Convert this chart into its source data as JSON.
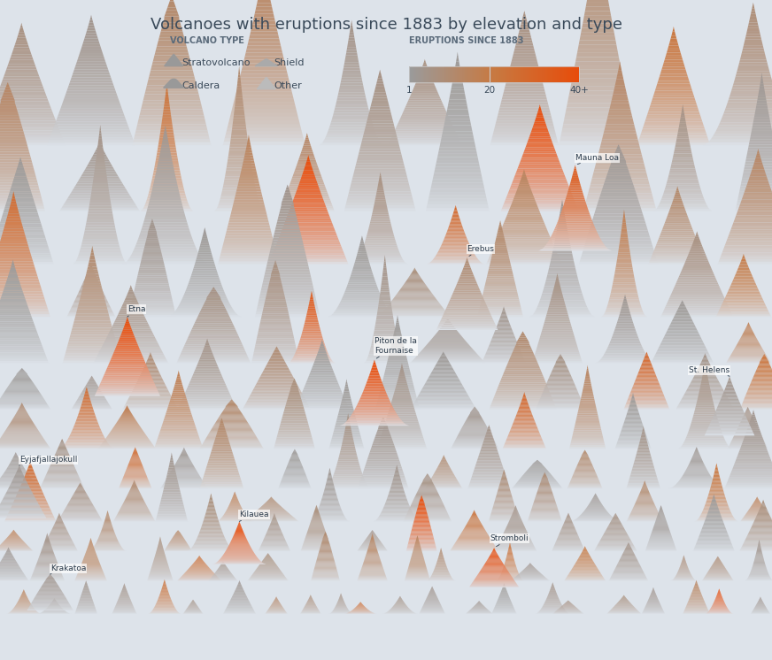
{
  "title": "Volcanoes with eruptions since 1883 by elevation and type",
  "background_color": "#dde3ea",
  "title_color": "#3a4a5a",
  "legend_type_label": "VOLCANO TYPE",
  "legend_eruption_label": "ERUPTIONS SINCE 1883",
  "legend_items": [
    "Stratovolcano",
    "Shield",
    "Caldera",
    "Other"
  ],
  "colorbar_ticks": [
    "1",
    "20",
    "40+"
  ],
  "color_low": "#9b9b9b",
  "color_mid": "#c87941",
  "color_high": "#e84c0a",
  "row_params": [
    [
      0.78,
      0.22,
      0.1,
      10,
      1
    ],
    [
      0.68,
      0.18,
      0.09,
      11,
      2
    ],
    [
      0.6,
      0.15,
      0.085,
      11,
      3
    ],
    [
      0.52,
      0.14,
      0.08,
      12,
      4
    ],
    [
      0.45,
      0.12,
      0.075,
      13,
      5
    ],
    [
      0.38,
      0.1,
      0.07,
      13,
      6
    ],
    [
      0.32,
      0.09,
      0.065,
      14,
      7
    ],
    [
      0.26,
      0.08,
      0.06,
      15,
      8
    ],
    [
      0.21,
      0.07,
      0.055,
      15,
      9
    ],
    [
      0.165,
      0.06,
      0.05,
      16,
      10
    ],
    [
      0.12,
      0.05,
      0.045,
      18,
      11
    ],
    [
      0.07,
      0.035,
      0.035,
      22,
      12
    ]
  ],
  "label_volc_params": {
    "Mauna Loa": [
      0.745,
      0.62,
      0.095,
      0.13,
      33,
      "shield",
      15
    ],
    "Erebus": [
      0.605,
      0.5,
      0.08,
      0.11,
      9,
      "strato",
      14
    ],
    "Etna": [
      0.165,
      0.4,
      0.085,
      0.12,
      40,
      "strato",
      14
    ],
    "Piton de la\nFournaise": [
      0.485,
      0.355,
      0.09,
      0.1,
      40,
      "shield",
      14
    ],
    "St. Helens": [
      0.945,
      0.34,
      0.065,
      0.09,
      3,
      "strato",
      13
    ],
    "Eyjafjallajokull": [
      0.025,
      0.215,
      0.07,
      0.08,
      2,
      "strato",
      12
    ],
    "Kilauea": [
      0.31,
      0.145,
      0.07,
      0.065,
      40,
      "shield",
      12
    ],
    "Stromboli": [
      0.64,
      0.11,
      0.065,
      0.06,
      40,
      "strato",
      12
    ],
    "Krakatoa": [
      0.065,
      0.075,
      0.06,
      0.055,
      3,
      "caldera",
      12
    ]
  },
  "label_positions": {
    "Mauna Loa": [
      0.745,
      0.755,
      "left"
    ],
    "Erebus": [
      0.605,
      0.617,
      "left"
    ],
    "Etna": [
      0.165,
      0.525,
      "left"
    ],
    "Piton de la\nFournaise": [
      0.485,
      0.463,
      "left"
    ],
    "St. Helens": [
      0.945,
      0.433,
      "right"
    ],
    "Eyjafjallajokull": [
      0.025,
      0.297,
      "left"
    ],
    "Kilauea": [
      0.31,
      0.214,
      "left"
    ],
    "Stromboli": [
      0.635,
      0.178,
      "left"
    ],
    "Krakatoa": [
      0.065,
      0.133,
      "left"
    ]
  }
}
